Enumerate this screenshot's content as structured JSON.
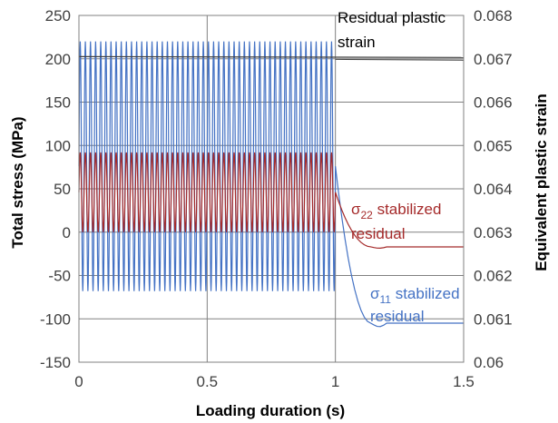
{
  "chart_data": {
    "type": "line",
    "xlabel": "Loading duration  (s)",
    "ylabel_left": "Total stress (MPa)",
    "ylabel_right": "Equivalent plastic strain",
    "xlim": [
      0,
      1.5
    ],
    "ylim_left": [
      -150,
      250
    ],
    "ylim_right": [
      0.06,
      0.068
    ],
    "x_ticks": [
      "0",
      "0.5",
      "1",
      "1.5"
    ],
    "y_ticks_left": [
      "250",
      "200",
      "150",
      "100",
      "50",
      "0",
      "-50",
      "-100",
      "-150"
    ],
    "y_ticks_right": [
      "0.068",
      "0.067",
      "0.066",
      "0.065",
      "0.064",
      "0.063",
      "0.062",
      "0.061",
      "0.06"
    ],
    "grid": true,
    "cycles": 50,
    "series": [
      {
        "name_sym": "σ",
        "name_sub": "11",
        "name_rest": " stabilized",
        "name_line2": "residual",
        "color": "#4472C4",
        "axis": "left",
        "cyclic_max": 220,
        "cyclic_min": -68,
        "residual": -105
      },
      {
        "name_sym": "σ",
        "name_sub": "22",
        "name_rest": " stabilized",
        "name_line2": "residual",
        "color": "#A52A2A",
        "axis": "left",
        "cyclic_max": 92,
        "cyclic_min": 0,
        "residual": -17
      },
      {
        "name_line1": "Residual plastic",
        "name_line2": "strain",
        "color": "#404040",
        "axis": "right",
        "values": [
          0.06705,
          0.06703
        ]
      }
    ]
  }
}
